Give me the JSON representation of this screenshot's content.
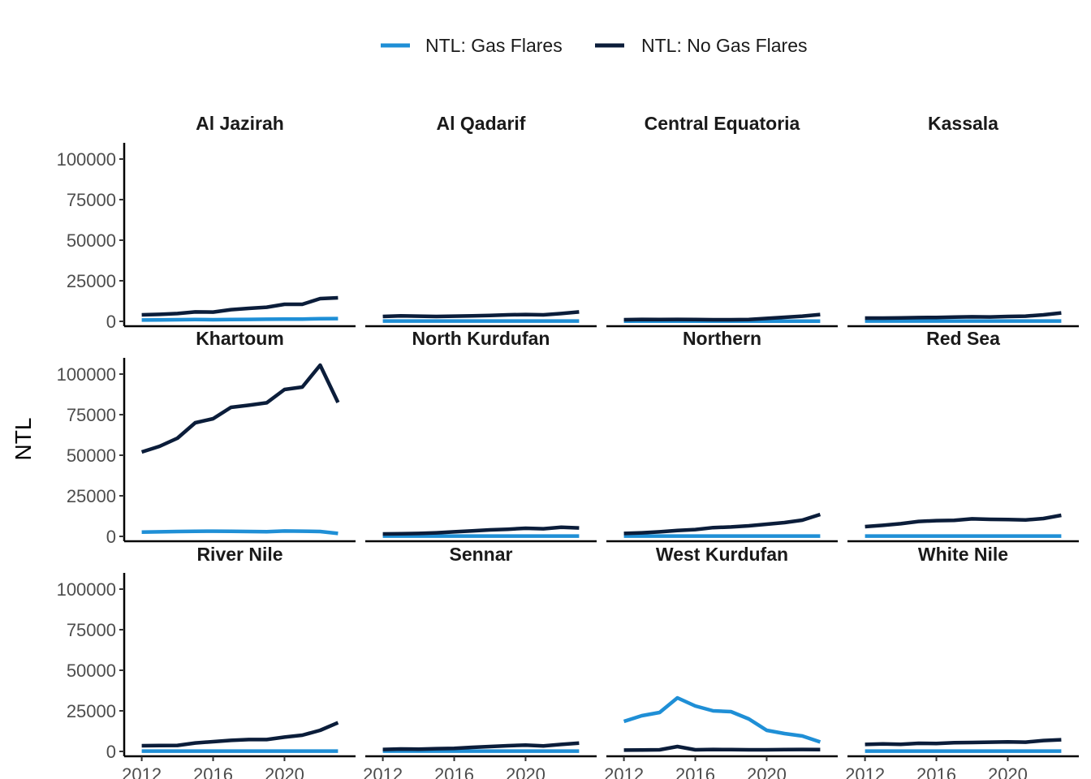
{
  "chart_data": {
    "type": "line",
    "title": "",
    "xlabel": "",
    "ylabel": "NTL",
    "legend_position": "top",
    "grid": false,
    "facet_layout": {
      "rows": 3,
      "cols": 4
    },
    "xlim": [
      2011.7,
      2023.3
    ],
    "ylim": [
      -3000,
      110000
    ],
    "x_ticks": [
      2012,
      2016,
      2020
    ],
    "y_ticks": [
      0,
      25000,
      50000,
      75000,
      100000
    ],
    "x_tick_labels": [
      "2012",
      "2016",
      "2020"
    ],
    "y_tick_labels": [
      "0",
      "25000",
      "50000",
      "75000",
      "100000"
    ],
    "series_info": [
      {
        "key": "gas",
        "name": "NTL: Gas Flares",
        "color": "#1f8fd6"
      },
      {
        "key": "nogas",
        "name": "NTL: No Gas Flares",
        "color": "#0b1d3a"
      }
    ],
    "x": [
      2012,
      2013,
      2014,
      2015,
      2016,
      2017,
      2018,
      2019,
      2020,
      2021,
      2022,
      2023
    ],
    "panels": [
      {
        "name": "Al Jazirah",
        "gas": [
          800,
          900,
          1000,
          1100,
          1000,
          1100,
          1200,
          1300,
          1400,
          1400,
          1600,
          1700
        ],
        "nogas": [
          4000,
          4300,
          4800,
          5800,
          5700,
          7200,
          8000,
          8700,
          10500,
          10500,
          14000,
          14500
        ]
      },
      {
        "name": "Al Qadarif",
        "gas": [
          200,
          200,
          200,
          200,
          200,
          200,
          200,
          200,
          200,
          200,
          200,
          200
        ],
        "nogas": [
          3000,
          3400,
          3200,
          3000,
          3200,
          3400,
          3600,
          4000,
          4200,
          4000,
          4800,
          5800
        ]
      },
      {
        "name": "Central Equatoria",
        "gas": [
          100,
          100,
          100,
          100,
          100,
          100,
          100,
          100,
          100,
          100,
          100,
          100
        ],
        "nogas": [
          1000,
          1200,
          1100,
          1200,
          1100,
          1000,
          1000,
          1100,
          1800,
          2500,
          3200,
          4200
        ]
      },
      {
        "name": "Kassala",
        "gas": [
          200,
          200,
          200,
          200,
          200,
          200,
          200,
          200,
          200,
          200,
          200,
          200
        ],
        "nogas": [
          2000,
          2000,
          2100,
          2300,
          2400,
          2600,
          2800,
          2700,
          3000,
          3200,
          4000,
          5200
        ]
      },
      {
        "name": "Khartoum",
        "gas": [
          2600,
          2800,
          3000,
          3100,
          3200,
          3100,
          3000,
          2900,
          3300,
          3200,
          3000,
          1800
        ],
        "nogas": [
          52000,
          55500,
          60500,
          70000,
          72500,
          79500,
          80800,
          82300,
          90500,
          92000,
          105500,
          82500
        ]
      },
      {
        "name": "North Kurdufan",
        "gas": [
          200,
          200,
          200,
          200,
          200,
          200,
          200,
          200,
          200,
          200,
          200,
          200
        ],
        "nogas": [
          1500,
          1600,
          1800,
          2200,
          2800,
          3400,
          4000,
          4400,
          5000,
          4700,
          5600,
          5200
        ]
      },
      {
        "name": "Northern",
        "gas": [
          200,
          200,
          200,
          200,
          200,
          200,
          200,
          200,
          200,
          200,
          200,
          200
        ],
        "nogas": [
          1800,
          2200,
          2800,
          3600,
          4200,
          5400,
          5800,
          6500,
          7500,
          8500,
          10000,
          13500
        ]
      },
      {
        "name": "Red Sea",
        "gas": [
          200,
          200,
          200,
          200,
          200,
          200,
          200,
          200,
          200,
          200,
          200,
          200
        ],
        "nogas": [
          6000,
          6800,
          7800,
          9200,
          9700,
          9900,
          10800,
          10500,
          10400,
          10100,
          11000,
          13000
        ]
      },
      {
        "name": "River Nile",
        "gas": [
          200,
          200,
          200,
          200,
          200,
          200,
          200,
          200,
          200,
          200,
          200,
          200
        ],
        "nogas": [
          3500,
          3600,
          3700,
          5200,
          6000,
          6800,
          7300,
          7300,
          8800,
          10000,
          13000,
          17700
        ]
      },
      {
        "name": "Sennar",
        "gas": [
          200,
          200,
          200,
          200,
          200,
          200,
          200,
          200,
          200,
          200,
          200,
          200
        ],
        "nogas": [
          1200,
          1500,
          1400,
          1700,
          1900,
          2500,
          3000,
          3500,
          3900,
          3400,
          4300,
          5100
        ]
      },
      {
        "name": "West Kurdufan",
        "gas": [
          18500,
          22000,
          24000,
          33000,
          28000,
          25000,
          24500,
          20000,
          13000,
          11000,
          9500,
          5800
        ],
        "nogas": [
          800,
          900,
          1000,
          3000,
          1000,
          1200,
          1100,
          1000,
          1000,
          1100,
          1200,
          1100
        ]
      },
      {
        "name": "White Nile",
        "gas": [
          200,
          200,
          200,
          200,
          200,
          200,
          200,
          200,
          200,
          200,
          200,
          200
        ],
        "nogas": [
          4300,
          4600,
          4400,
          5000,
          4900,
          5400,
          5500,
          5700,
          5900,
          5700,
          6700,
          7200
        ]
      }
    ]
  }
}
